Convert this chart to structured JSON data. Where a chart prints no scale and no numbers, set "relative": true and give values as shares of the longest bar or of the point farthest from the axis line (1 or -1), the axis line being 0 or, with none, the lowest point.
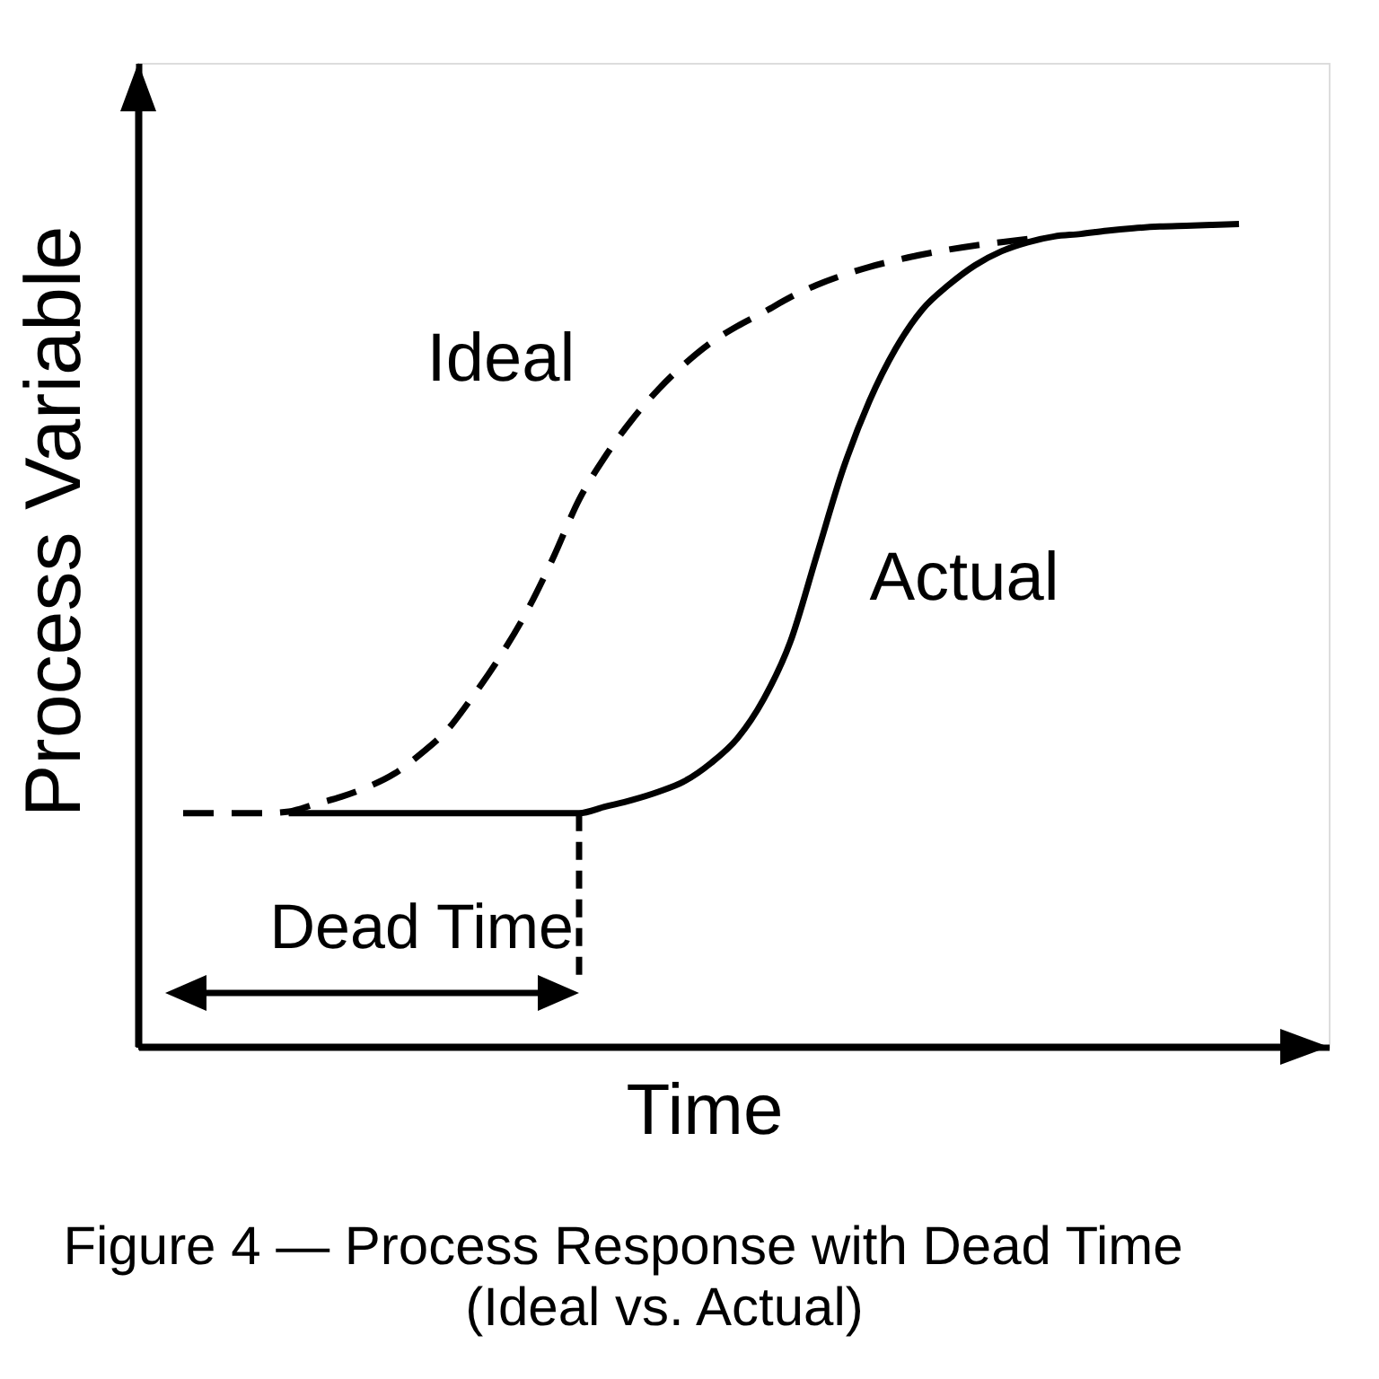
{
  "chart_data": {
    "type": "line",
    "xlabel": "Time",
    "ylabel": "Process Variable",
    "relative": true,
    "grid": false,
    "legend": false,
    "tick_labels": false,
    "categories": [
      null,
      null,
      null,
      null,
      null,
      null,
      null,
      null,
      null,
      null,
      null,
      null,
      null,
      null,
      null,
      null,
      null,
      null,
      null,
      null,
      null,
      null,
      null,
      null,
      null,
      null,
      null,
      null,
      null,
      null,
      null,
      null,
      null,
      null,
      null,
      null,
      null,
      null,
      null,
      null,
      null
    ],
    "series": [
      {
        "name": "Ideal",
        "color": "#000000",
        "line_style": "dashed",
        "values": [
          0.284,
          0.284,
          0.284,
          0.284,
          0.286,
          0.295,
          0.304,
          0.316,
          0.332,
          0.356,
          0.385,
          0.427,
          0.474,
          0.528,
          0.593,
          0.665,
          0.718,
          0.762,
          0.799,
          0.83,
          0.856,
          0.876,
          0.893,
          0.911,
          0.926,
          0.938,
          0.948,
          0.956,
          0.963,
          0.969,
          0.974,
          0.978,
          0.982,
          null,
          null,
          null,
          null,
          null,
          null,
          null,
          null
        ]
      },
      {
        "name": "Actual",
        "color": "#000000",
        "line_style": "solid",
        "values": [
          null,
          null,
          null,
          null,
          0.284,
          0.284,
          0.284,
          0.284,
          0.284,
          0.284,
          0.284,
          0.284,
          0.284,
          0.284,
          0.284,
          0.284,
          0.292,
          0.3,
          0.31,
          0.323,
          0.345,
          0.375,
          0.423,
          0.492,
          0.597,
          0.702,
          0.785,
          0.849,
          0.896,
          0.926,
          0.95,
          0.967,
          0.978,
          0.985,
          0.988,
          0.992,
          0.995,
          0.997,
          0.998,
          0.999,
          1.0
        ]
      }
    ],
    "annotations": [
      "Dead Time",
      "Figure 4 — Process Response with Dead Time",
      "(Ideal vs. Actual)"
    ]
  }
}
